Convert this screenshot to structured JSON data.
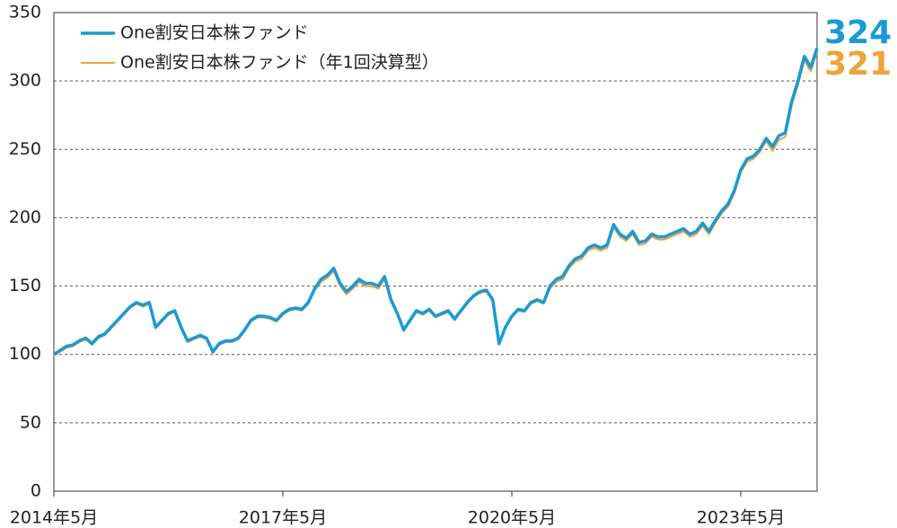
{
  "chart_data": {
    "type": "line",
    "x": [
      "2014-05",
      "2014-06",
      "2014-07",
      "2014-08",
      "2014-09",
      "2014-10",
      "2014-11",
      "2014-12",
      "2015-01",
      "2015-02",
      "2015-03",
      "2015-04",
      "2015-05",
      "2015-06",
      "2015-07",
      "2015-08",
      "2015-09",
      "2015-10",
      "2015-11",
      "2015-12",
      "2016-01",
      "2016-02",
      "2016-03",
      "2016-04",
      "2016-05",
      "2016-06",
      "2016-07",
      "2016-08",
      "2016-09",
      "2016-10",
      "2016-11",
      "2016-12",
      "2017-01",
      "2017-02",
      "2017-03",
      "2017-04",
      "2017-05",
      "2017-06",
      "2017-07",
      "2017-08",
      "2017-09",
      "2017-10",
      "2017-11",
      "2017-12",
      "2018-01",
      "2018-02",
      "2018-03",
      "2018-04",
      "2018-05",
      "2018-06",
      "2018-07",
      "2018-08",
      "2018-09",
      "2018-10",
      "2018-11",
      "2018-12",
      "2019-01",
      "2019-02",
      "2019-03",
      "2019-04",
      "2019-05",
      "2019-06",
      "2019-07",
      "2019-08",
      "2019-09",
      "2019-10",
      "2019-11",
      "2019-12",
      "2020-01",
      "2020-02",
      "2020-03",
      "2020-04",
      "2020-05",
      "2020-06",
      "2020-07",
      "2020-08",
      "2020-09",
      "2020-10",
      "2020-11",
      "2020-12",
      "2021-01",
      "2021-02",
      "2021-03",
      "2021-04",
      "2021-05",
      "2021-06",
      "2021-07",
      "2021-08",
      "2021-09",
      "2021-10",
      "2021-11",
      "2021-12",
      "2022-01",
      "2022-02",
      "2022-03",
      "2022-04",
      "2022-05",
      "2022-06",
      "2022-07",
      "2022-08",
      "2022-09",
      "2022-10",
      "2022-11",
      "2022-12",
      "2023-01",
      "2023-02",
      "2023-03",
      "2023-04",
      "2023-05",
      "2023-06",
      "2023-07",
      "2023-08",
      "2023-09",
      "2023-10",
      "2023-11",
      "2023-12",
      "2024-01",
      "2024-02",
      "2024-03",
      "2024-04",
      "2024-05"
    ],
    "series": [
      {
        "name": "One割安日本株ファンド",
        "color": "#1a9ad6",
        "width": 3.5,
        "values": [
          100,
          103,
          106,
          107,
          110,
          112,
          108,
          113,
          115,
          120,
          125,
          130,
          135,
          138,
          136,
          138,
          120,
          125,
          130,
          132,
          120,
          110,
          112,
          114,
          112,
          102,
          108,
          110,
          110,
          112,
          118,
          125,
          128,
          128,
          127,
          125,
          130,
          133,
          134,
          133,
          138,
          148,
          155,
          158,
          163,
          152,
          146,
          150,
          155,
          152,
          152,
          150,
          157,
          140,
          130,
          118,
          125,
          132,
          130,
          133,
          128,
          130,
          132,
          126,
          132,
          138,
          143,
          146,
          147,
          140,
          108,
          120,
          128,
          133,
          132,
          138,
          140,
          138,
          150,
          155,
          157,
          165,
          170,
          172,
          178,
          180,
          178,
          180,
          195,
          188,
          185,
          190,
          182,
          183,
          188,
          186,
          186,
          188,
          190,
          192,
          188,
          190,
          196,
          190,
          198,
          205,
          210,
          220,
          235,
          243,
          245,
          250,
          258,
          252,
          260,
          262,
          285,
          300,
          318,
          310,
          324
        ]
      },
      {
        "name": "One割安日本株ファンド（年1回決算型）",
        "color": "#f0a23c",
        "width": 2,
        "values": [
          99,
          102,
          105,
          106,
          109,
          111,
          107,
          112,
          114,
          119,
          124,
          129,
          134,
          137,
          135,
          137,
          119,
          124,
          129,
          131,
          119,
          109,
          111,
          113,
          111,
          101,
          107,
          109,
          109,
          111,
          117,
          124,
          127,
          127,
          126,
          124,
          129,
          132,
          133,
          132,
          137,
          147,
          153,
          156,
          161,
          150,
          144,
          148,
          153,
          150,
          150,
          148,
          155,
          139,
          129,
          117,
          124,
          131,
          129,
          132,
          127,
          129,
          131,
          125,
          131,
          137,
          142,
          145,
          146,
          139,
          107,
          119,
          127,
          132,
          131,
          137,
          139,
          137,
          148,
          153,
          155,
          163,
          168,
          170,
          176,
          178,
          176,
          178,
          193,
          186,
          183,
          188,
          180,
          181,
          186,
          184,
          184,
          186,
          188,
          190,
          186,
          188,
          194,
          188,
          196,
          203,
          208,
          218,
          233,
          241,
          243,
          248,
          256,
          249,
          257,
          259,
          282,
          297,
          315,
          307,
          321
        ]
      }
    ],
    "xlim": [
      "2014-05",
      "2024-05"
    ],
    "xticks": [
      {
        "value": "2014-05",
        "label": "2014年5月"
      },
      {
        "value": "2017-05",
        "label": "2017年5月"
      },
      {
        "value": "2020-05",
        "label": "2020年5月"
      },
      {
        "value": "2023-05",
        "label": "2023年5月"
      }
    ],
    "ylim": [
      0,
      350
    ],
    "yticks": [
      0,
      50,
      100,
      150,
      200,
      250,
      300,
      350
    ],
    "grid": true,
    "legend": "top-left"
  }
}
